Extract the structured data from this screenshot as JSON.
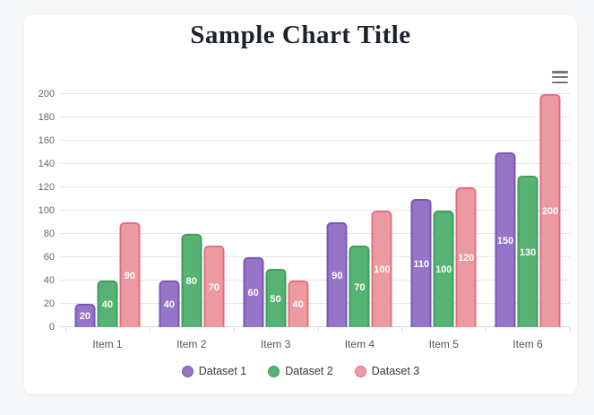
{
  "page": {
    "background_color": "#f5f6f7",
    "card_color": "#ffffff"
  },
  "header": {
    "title": "Sample Chart Title",
    "title_color": "#1b2331"
  },
  "toolbar": {
    "menu_icon": "hamburger-icon"
  },
  "chart_data": {
    "type": "bar",
    "title": "Sample Chart Title",
    "categories": [
      "Item 1",
      "Item 2",
      "Item 3",
      "Item 4",
      "Item 5",
      "Item 6"
    ],
    "series": [
      {
        "name": "Dataset 1",
        "values": [
          20,
          40,
          60,
          90,
          110,
          150
        ],
        "fill": "#9674c7",
        "border": "#7a57b4"
      },
      {
        "name": "Dataset 2",
        "values": [
          40,
          80,
          50,
          70,
          100,
          130
        ],
        "fill": "#57b373",
        "border": "#3e9e60"
      },
      {
        "name": "Dataset 3",
        "values": [
          90,
          70,
          40,
          100,
          120,
          200
        ],
        "fill": "#ec9aa1",
        "border": "#e37080"
      }
    ],
    "xlabel": "",
    "ylabel": "",
    "ylim": [
      0,
      200
    ],
    "ytick_step": 20,
    "yticks": [
      0,
      20,
      40,
      60,
      80,
      100,
      120,
      140,
      160,
      180,
      200
    ],
    "grid": true,
    "value_labels": true,
    "legend_position": "bottom",
    "grid_color": "#e7e7e7",
    "axis_label_color": "#666666",
    "category_label_color": "#555555",
    "legend_text_color": "#383838"
  }
}
